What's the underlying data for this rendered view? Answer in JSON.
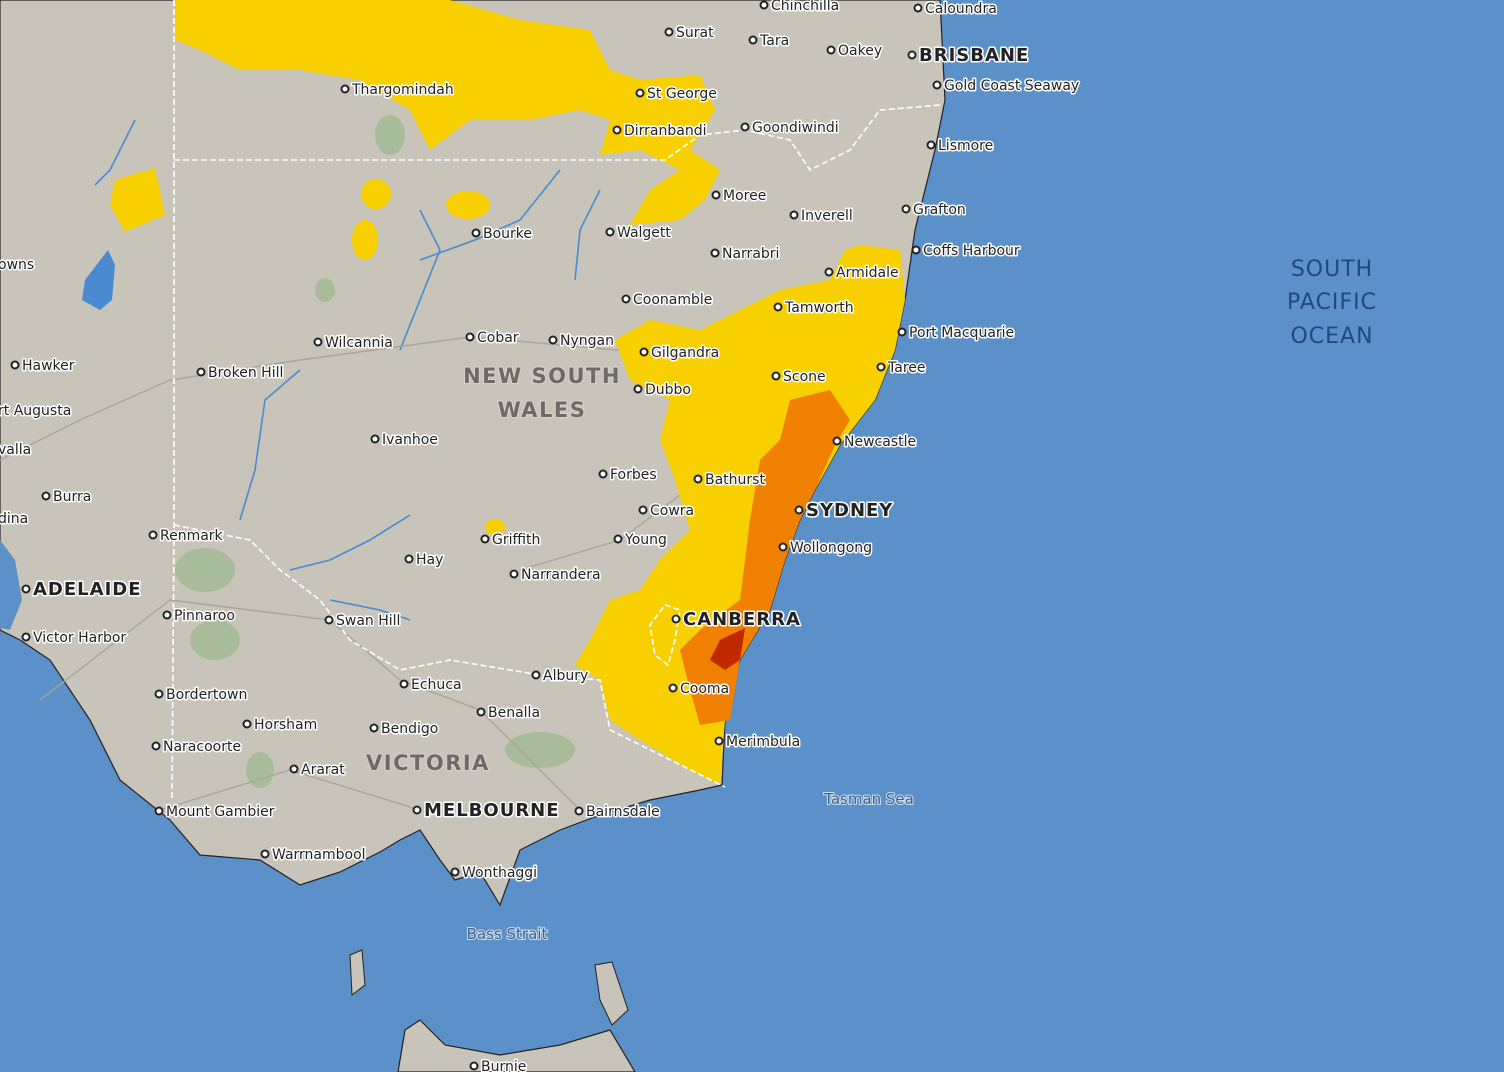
{
  "map": {
    "colors": {
      "ocean": "#5b90c8",
      "land": "#c8c4b9",
      "warning_low": "#f8d000",
      "warning_mid": "#f08000",
      "warning_high": "#c02800",
      "park": "#a8bc9c",
      "river": "#4a8ad0"
    },
    "regions": {
      "nsw_line1": "NEW SOUTH",
      "nsw_line2": "WALES",
      "vic": "VICTORIA",
      "ocean_line1": "SOUTH",
      "ocean_line2": "PACIFIC",
      "ocean_line3": "OCEAN",
      "tasman": "Tasman Sea",
      "bass": "Bass Strait"
    },
    "places": [
      {
        "name": "Chinchilla"
      },
      {
        "name": "Caloundra"
      },
      {
        "name": "Surat"
      },
      {
        "name": "Tara"
      },
      {
        "name": "Oakey"
      },
      {
        "name": "BRISBANE",
        "major": true
      },
      {
        "name": "Gold Coast Seaway"
      },
      {
        "name": "Thargomindah"
      },
      {
        "name": "St George"
      },
      {
        "name": "Dirranbandi"
      },
      {
        "name": "Goondiwindi"
      },
      {
        "name": "Lismore"
      },
      {
        "name": "Grafton"
      },
      {
        "name": "Moree"
      },
      {
        "name": "Inverell"
      },
      {
        "name": "Bourke"
      },
      {
        "name": "Walgett"
      },
      {
        "name": "Narrabri"
      },
      {
        "name": "Coffs Harbour"
      },
      {
        "name": "Armidale"
      },
      {
        "name": "owns"
      },
      {
        "name": "Coonamble"
      },
      {
        "name": "Tamworth"
      },
      {
        "name": "Port Macquarie"
      },
      {
        "name": "Wilcannia"
      },
      {
        "name": "Cobar"
      },
      {
        "name": "Nyngan"
      },
      {
        "name": "Gilgandra"
      },
      {
        "name": "Hawker"
      },
      {
        "name": "Broken Hill"
      },
      {
        "name": "Taree"
      },
      {
        "name": "Scone"
      },
      {
        "name": "Dubbo"
      },
      {
        "name": "rt Augusta"
      },
      {
        "name": "valla"
      },
      {
        "name": "Ivanhoe"
      },
      {
        "name": "Newcastle"
      },
      {
        "name": "Forbes"
      },
      {
        "name": "Bathurst"
      },
      {
        "name": "Burra"
      },
      {
        "name": "dina"
      },
      {
        "name": "Cowra"
      },
      {
        "name": "SYDNEY",
        "major": true
      },
      {
        "name": "Renmark"
      },
      {
        "name": "Griffith"
      },
      {
        "name": "Young"
      },
      {
        "name": "Wollongong"
      },
      {
        "name": "Hay"
      },
      {
        "name": "Narrandera"
      },
      {
        "name": "ADELAIDE",
        "major": true
      },
      {
        "name": "Pinnaroo"
      },
      {
        "name": "CANBERRA",
        "major": true
      },
      {
        "name": "Swan Hill"
      },
      {
        "name": "Victor Harbor"
      },
      {
        "name": "Albury"
      },
      {
        "name": "Echuca"
      },
      {
        "name": "Cooma"
      },
      {
        "name": "Bordertown"
      },
      {
        "name": "Benalla"
      },
      {
        "name": "Horsham"
      },
      {
        "name": "Bendigo"
      },
      {
        "name": "Naracoorte"
      },
      {
        "name": "Merimbula"
      },
      {
        "name": "Ararat"
      },
      {
        "name": "MELBOURNE",
        "major": true
      },
      {
        "name": "Bairnsdale"
      },
      {
        "name": "Mount Gambier"
      },
      {
        "name": "Warrnambool"
      },
      {
        "name": "Wonthaggi"
      },
      {
        "name": "Burnie"
      }
    ]
  }
}
